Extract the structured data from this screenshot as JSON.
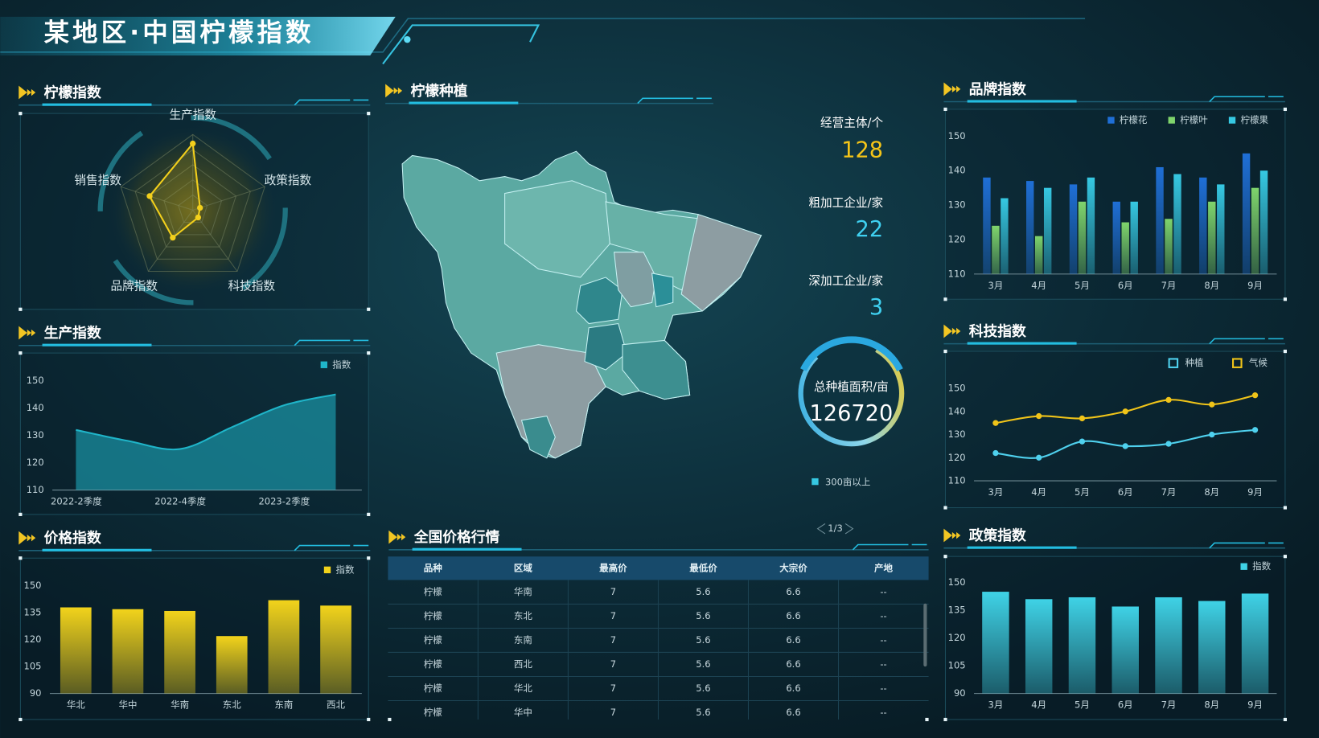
{
  "header": {
    "title": "某地区·中国柠檬指数"
  },
  "chart_data": [
    {
      "type": "radar",
      "title": "柠檬指数",
      "indicators": [
        "生产指数",
        "政策指数",
        "科技指数",
        "品牌指数",
        "销售指数"
      ],
      "values": [
        88,
        10,
        12,
        45,
        60
      ],
      "rlim": [
        0,
        100
      ],
      "color": "#f2cf1c"
    },
    {
      "type": "area",
      "title": "生产指数",
      "categories": [
        "2022-2季度",
        null,
        "2022-4季度",
        null,
        "2023-2季度",
        null
      ],
      "series": [
        {
          "name": "指数",
          "color": "#1fb5c9",
          "values": [
            132,
            128,
            125,
            133,
            141,
            145
          ]
        }
      ],
      "ylim": [
        110,
        150
      ],
      "yticks": [
        110,
        120,
        130,
        140,
        150
      ]
    },
    {
      "type": "bar",
      "title": "价格指数",
      "categories": [
        "华北",
        "华中",
        "华南",
        "东北",
        "东南",
        "西北"
      ],
      "series": [
        {
          "name": "指数",
          "color": "#f2d31b",
          "values": [
            138,
            137,
            136,
            122,
            142,
            139
          ]
        }
      ],
      "ylim": [
        90,
        150
      ],
      "yticks": [
        90,
        105,
        120,
        135,
        150
      ]
    },
    {
      "type": "bar",
      "title": "品牌指数",
      "categories": [
        "3月",
        "4月",
        "5月",
        "6月",
        "7月",
        "8月",
        "9月"
      ],
      "series": [
        {
          "name": "柠檬花",
          "color": "#1f6fd6",
          "values": [
            138,
            137,
            136,
            131,
            141,
            138,
            145
          ]
        },
        {
          "name": "柠檬叶",
          "color": "#7fd46c",
          "values": [
            124,
            121,
            131,
            125,
            126,
            131,
            135
          ]
        },
        {
          "name": "柠檬果",
          "color": "#36c8e2",
          "values": [
            132,
            135,
            138,
            131,
            139,
            136,
            140
          ]
        }
      ],
      "ylim": [
        110,
        150
      ],
      "yticks": [
        110,
        120,
        130,
        140,
        150
      ]
    },
    {
      "type": "line",
      "title": "科技指数",
      "categories": [
        "3月",
        "4月",
        "5月",
        "6月",
        "7月",
        "8月",
        "9月"
      ],
      "series": [
        {
          "name": "种植",
          "color": "#4fd1ee",
          "values": [
            122,
            120,
            127,
            125,
            126,
            130,
            132
          ]
        },
        {
          "name": "气候",
          "color": "#f0c419",
          "values": [
            135,
            138,
            137,
            140,
            145,
            143,
            147
          ]
        }
      ],
      "ylim": [
        110,
        150
      ],
      "yticks": [
        110,
        120,
        130,
        140,
        150
      ]
    },
    {
      "type": "bar",
      "title": "政策指数",
      "categories": [
        "3月",
        "4月",
        "5月",
        "6月",
        "7月",
        "8月",
        "9月"
      ],
      "series": [
        {
          "name": "指数",
          "color": "#3fd2e6",
          "values": [
            145,
            141,
            142,
            137,
            142,
            140,
            144
          ]
        }
      ],
      "ylim": [
        90,
        150
      ],
      "yticks": [
        90,
        105,
        120,
        135,
        150
      ]
    }
  ],
  "map": {
    "title": "柠檬种植",
    "legend": "300亩以上",
    "pager": "1/3"
  },
  "stats": [
    {
      "label": "经营主体/个",
      "value": 128,
      "color": "#f5c518"
    },
    {
      "label": "粗加工企业/家",
      "value": 22,
      "color": "#3fd0f0"
    },
    {
      "label": "深加工企业/家",
      "value": 3,
      "color": "#3fd0f0"
    }
  ],
  "total": {
    "label": "总种植面积/亩",
    "value": 126720
  },
  "table": {
    "title": "全国价格行情",
    "columns": [
      "品种",
      "区域",
      "最高价",
      "最低价",
      "大宗价",
      "产地"
    ],
    "rows": [
      [
        "柠檬",
        "华南",
        "7",
        "5.6",
        "6.6",
        "--"
      ],
      [
        "柠檬",
        "东北",
        "7",
        "5.6",
        "6.6",
        "--"
      ],
      [
        "柠檬",
        "东南",
        "7",
        "5.6",
        "6.6",
        "--"
      ],
      [
        "柠檬",
        "西北",
        "7",
        "5.6",
        "6.6",
        "--"
      ],
      [
        "柠檬",
        "华北",
        "7",
        "5.6",
        "6.6",
        "--"
      ],
      [
        "柠檬",
        "华中",
        "7",
        "5.6",
        "6.6",
        "--"
      ]
    ]
  }
}
